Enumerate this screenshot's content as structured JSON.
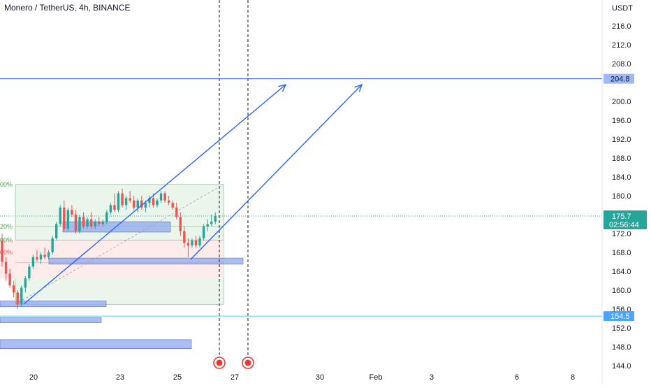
{
  "header": {
    "title": "Monero / TetherUS, 4h, BINANCE"
  },
  "colors": {
    "up": "#26a69a",
    "down": "#ef5350",
    "arrow": "#2962ff",
    "zone_fill": "#8fa8f0",
    "green_zone": "#e8f5e9",
    "red_zone": "#fdecea"
  },
  "chart_data": {
    "type": "candlestick",
    "y_axis": {
      "unit": "USDT",
      "ticks": [
        "216.0",
        "212.0",
        "208.0",
        "200.0",
        "196.0",
        "192.0",
        "188.0",
        "184.0",
        "180.0",
        "172.0",
        "168.0",
        "164.0",
        "160.0",
        "156.0",
        "152.0",
        "148.0",
        "144.0"
      ],
      "range": [
        143,
        219
      ]
    },
    "x_axis": {
      "ticks": [
        "20",
        "23",
        "25",
        "27",
        "30",
        "Feb",
        "3",
        "6",
        "8"
      ]
    },
    "price_badges": [
      {
        "name": "resistance",
        "value": "204.8"
      },
      {
        "name": "current",
        "value": "175.7",
        "countdown": "02:56:44"
      },
      {
        "name": "support",
        "value": "154.5"
      }
    ],
    "fib_labels": [
      {
        "text": "00%",
        "price": 182.4
      },
      {
        "text": "20%",
        "price": 173.5
      },
      {
        "text": "00%",
        "price": 170.6
      },
      {
        "text": "00%",
        "price": 168.0
      }
    ],
    "candles": [
      [
        170.5,
        172.0,
        165.0,
        166.0
      ],
      [
        166.0,
        167.0,
        162.0,
        163.5
      ],
      [
        163.5,
        164.5,
        160.5,
        161.0
      ],
      [
        161.0,
        162.0,
        158.5,
        159.5
      ],
      [
        159.5,
        160.0,
        156.0,
        157.0
      ],
      [
        157.0,
        161.0,
        156.5,
        160.5
      ],
      [
        160.5,
        163.0,
        159.5,
        162.5
      ],
      [
        162.5,
        165.5,
        162.0,
        165.0
      ],
      [
        165.0,
        167.5,
        164.5,
        167.0
      ],
      [
        167.0,
        168.5,
        166.0,
        166.5
      ],
      [
        166.5,
        168.0,
        165.5,
        167.5
      ],
      [
        167.5,
        169.0,
        166.5,
        167.0
      ],
      [
        167.0,
        168.5,
        166.5,
        168.0
      ],
      [
        168.0,
        171.5,
        167.5,
        171.0
      ],
      [
        171.0,
        174.5,
        170.5,
        174.0
      ],
      [
        174.0,
        178.0,
        173.5,
        177.5
      ],
      [
        177.5,
        179.0,
        172.5,
        173.0
      ],
      [
        173.0,
        177.5,
        172.5,
        177.0
      ],
      [
        177.0,
        178.0,
        175.5,
        176.0
      ],
      [
        176.0,
        177.0,
        172.0,
        172.5
      ],
      [
        172.5,
        176.0,
        172.0,
        175.5
      ],
      [
        175.5,
        176.5,
        173.0,
        173.5
      ],
      [
        173.5,
        175.5,
        173.0,
        175.0
      ],
      [
        175.0,
        176.5,
        173.0,
        173.5
      ],
      [
        173.5,
        175.0,
        173.0,
        174.5
      ],
      [
        174.5,
        175.5,
        173.5,
        174.0
      ],
      [
        174.0,
        175.0,
        173.5,
        174.5
      ],
      [
        174.5,
        177.0,
        174.0,
        176.5
      ],
      [
        176.5,
        178.5,
        176.0,
        178.0
      ],
      [
        178.0,
        180.5,
        176.5,
        177.0
      ],
      [
        177.0,
        181.0,
        176.5,
        180.5
      ],
      [
        180.5,
        181.5,
        177.5,
        178.0
      ],
      [
        178.0,
        180.0,
        177.0,
        179.5
      ],
      [
        179.5,
        181.0,
        178.5,
        179.0
      ],
      [
        179.0,
        180.0,
        177.0,
        177.5
      ],
      [
        177.5,
        179.5,
        176.5,
        179.0
      ],
      [
        179.0,
        180.0,
        177.0,
        177.5
      ],
      [
        177.5,
        179.0,
        176.5,
        178.5
      ],
      [
        178.5,
        180.0,
        177.5,
        179.5
      ],
      [
        179.5,
        180.5,
        177.5,
        178.0
      ],
      [
        178.0,
        179.5,
        177.5,
        179.0
      ],
      [
        179.0,
        181.0,
        178.5,
        180.5
      ],
      [
        180.5,
        181.0,
        178.5,
        179.0
      ],
      [
        179.0,
        180.0,
        178.0,
        178.5
      ],
      [
        178.5,
        179.0,
        177.0,
        177.5
      ],
      [
        177.5,
        178.5,
        175.0,
        175.5
      ],
      [
        175.5,
        176.5,
        171.5,
        172.5
      ],
      [
        172.5,
        173.5,
        169.0,
        170.0
      ],
      [
        170.0,
        171.0,
        167.0,
        169.5
      ],
      [
        169.5,
        171.0,
        169.0,
        170.5
      ],
      [
        170.5,
        171.5,
        169.0,
        169.5
      ],
      [
        169.5,
        171.5,
        169.0,
        171.0
      ],
      [
        171.0,
        174.0,
        170.5,
        173.5
      ],
      [
        173.5,
        175.0,
        172.5,
        174.0
      ],
      [
        174.0,
        176.0,
        173.5,
        174.5
      ],
      [
        174.5,
        176.5,
        174.0,
        175.7
      ]
    ]
  }
}
